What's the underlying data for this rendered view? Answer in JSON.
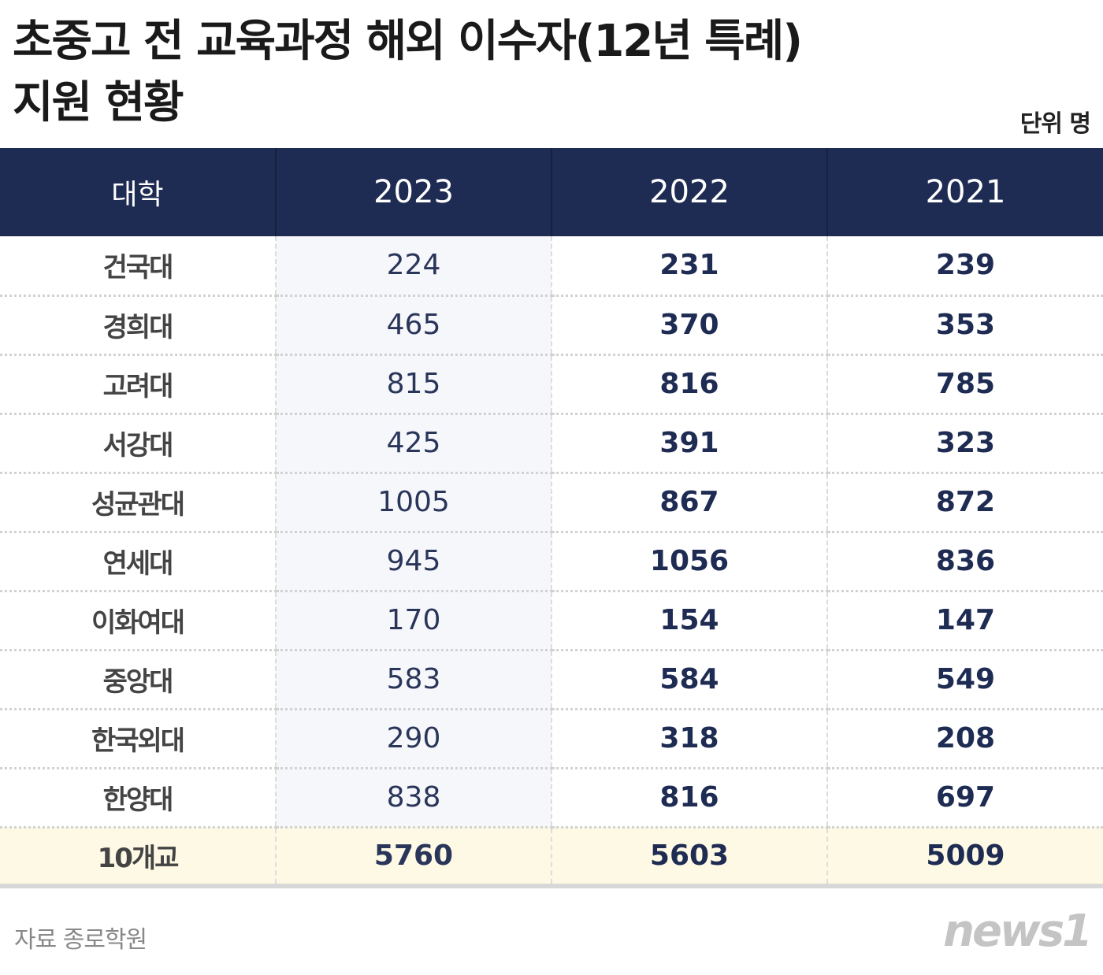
{
  "title_line1": "초중고 전 교육과정 해외 이수자(12년 특례)",
  "title_line2": "지원 현황",
  "unit": "단위 명",
  "chart_data": {
    "type": "table",
    "columns": [
      "대학",
      "2023",
      "2022",
      "2021"
    ],
    "rows": [
      [
        "건국대",
        "224",
        "231",
        "239"
      ],
      [
        "경희대",
        "465",
        "370",
        "353"
      ],
      [
        "고려대",
        "815",
        "816",
        "785"
      ],
      [
        "서강대",
        "425",
        "391",
        "323"
      ],
      [
        "성균관대",
        "1005",
        "867",
        "872"
      ],
      [
        "연세대",
        "945",
        "1056",
        "836"
      ],
      [
        "이화여대",
        "170",
        "154",
        "147"
      ],
      [
        "중앙대",
        "583",
        "584",
        "549"
      ],
      [
        "한국외대",
        "290",
        "318",
        "208"
      ],
      [
        "한양대",
        "838",
        "816",
        "697"
      ]
    ],
    "total": [
      "10개교",
      "5760",
      "5603",
      "5009"
    ]
  },
  "source": "자료 종로학원",
  "logo": "news1",
  "colors": {
    "header": "#1e2b52",
    "total_row": "#fdf9e4"
  }
}
